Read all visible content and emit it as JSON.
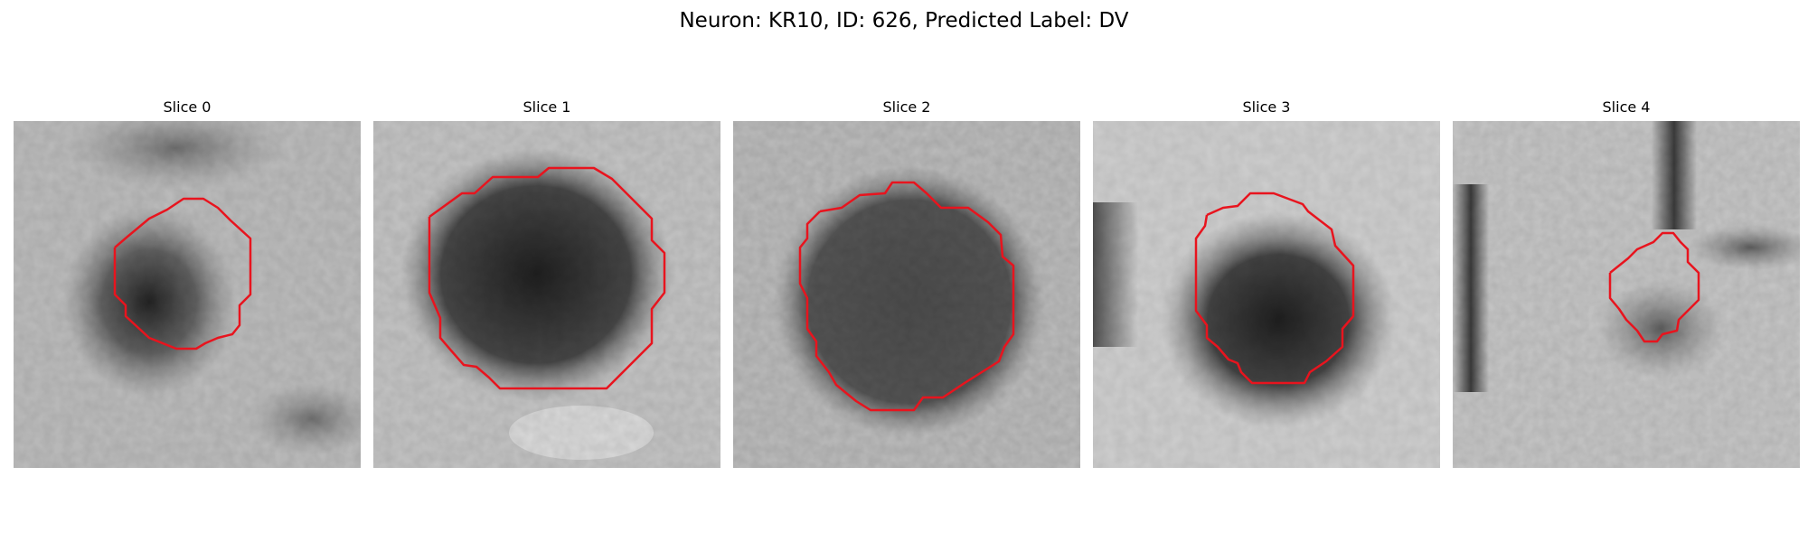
{
  "figure": {
    "title": "Neuron: KR10, ID: 626, Predicted Label: DV"
  },
  "colors": {
    "contour": "#e8141e",
    "background": "#ffffff"
  },
  "panels": [
    {
      "title": "Slice 0"
    },
    {
      "title": "Slice 1"
    },
    {
      "title": "Slice 2"
    },
    {
      "title": "Slice 3"
    },
    {
      "title": "Slice 4"
    }
  ]
}
